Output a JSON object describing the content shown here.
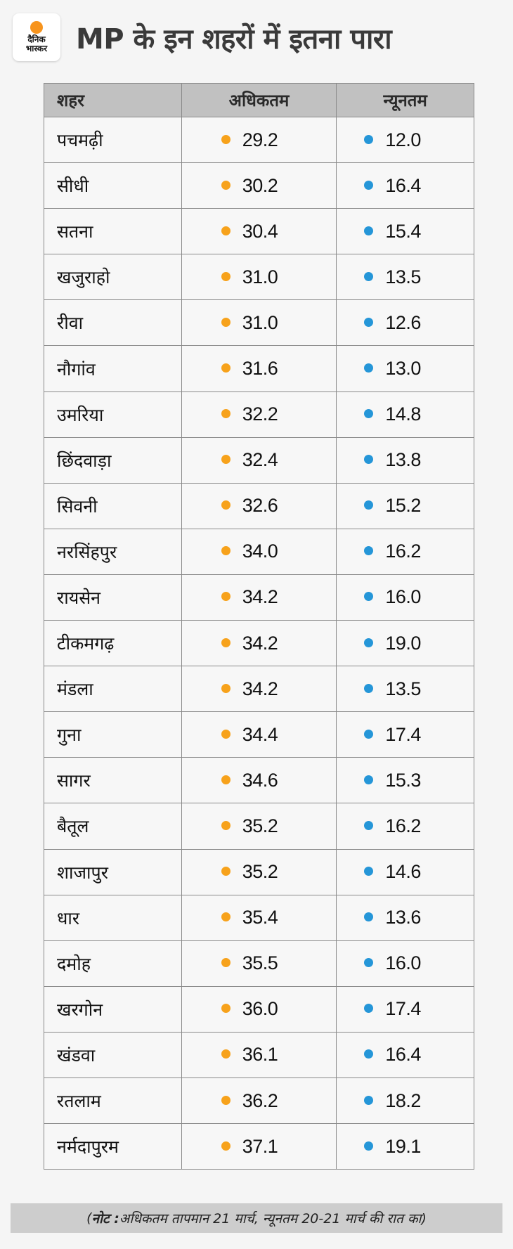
{
  "header": {
    "logo_line1": "दैनिक",
    "logo_line2": "भास्कर",
    "title": "MP के इन शहरों में इतना पारा"
  },
  "table": {
    "columns": [
      "शहर",
      "अधिकतम",
      "न्यूनतम"
    ],
    "colors": {
      "max_dot": "#f7a21b",
      "min_dot": "#2596d8",
      "header_bg": "#c1c1c1"
    },
    "rows": [
      {
        "city": "पचमढ़ी",
        "max": "29.2",
        "min": "12.0"
      },
      {
        "city": "सीधी",
        "max": "30.2",
        "min": "16.4"
      },
      {
        "city": "सतना",
        "max": "30.4",
        "min": "15.4"
      },
      {
        "city": "खजुराहो",
        "max": "31.0",
        "min": "13.5"
      },
      {
        "city": "रीवा",
        "max": "31.0",
        "min": "12.6"
      },
      {
        "city": "नौगांव",
        "max": "31.6",
        "min": "13.0"
      },
      {
        "city": "उमरिया",
        "max": "32.2",
        "min": "14.8"
      },
      {
        "city": "छिंदवाड़ा",
        "max": "32.4",
        "min": "13.8"
      },
      {
        "city": "सिवनी",
        "max": "32.6",
        "min": "15.2"
      },
      {
        "city": "नरसिंहपुर",
        "max": "34.0",
        "min": "16.2"
      },
      {
        "city": "रायसेन",
        "max": "34.2",
        "min": "16.0"
      },
      {
        "city": "टीकमगढ़",
        "max": "34.2",
        "min": "19.0"
      },
      {
        "city": "मंडला",
        "max": "34.2",
        "min": "13.5"
      },
      {
        "city": "गुना",
        "max": "34.4",
        "min": "17.4"
      },
      {
        "city": "सागर",
        "max": "34.6",
        "min": "15.3"
      },
      {
        "city": "बैतूल",
        "max": "35.2",
        "min": "16.2"
      },
      {
        "city": "शाजापुर",
        "max": "35.2",
        "min": "14.6"
      },
      {
        "city": "धार",
        "max": "35.4",
        "min": "13.6"
      },
      {
        "city": "दमोह",
        "max": "35.5",
        "min": "16.0"
      },
      {
        "city": "खरगोन",
        "max": "36.0",
        "min": "17.4"
      },
      {
        "city": "खंडवा",
        "max": "36.1",
        "min": "16.4"
      },
      {
        "city": "रतलाम",
        "max": "36.2",
        "min": "18.2"
      },
      {
        "city": "नर्मदापुरम",
        "max": "37.1",
        "min": "19.1"
      }
    ]
  },
  "note": {
    "open": "(",
    "label": "नोट :",
    "text": " अधिकतम तापमान 21 मार्च, न्यूनतम 20-21 मार्च की रात का)"
  }
}
